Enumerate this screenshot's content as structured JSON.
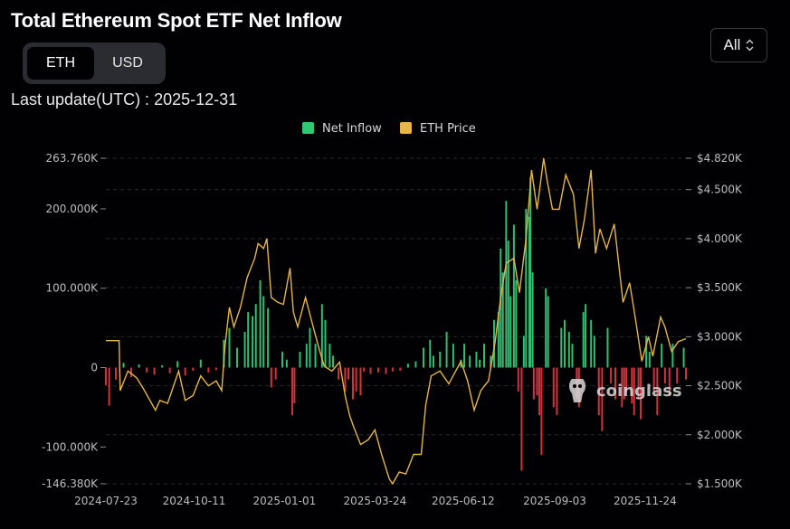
{
  "header": {
    "title": "Total Ethereum Spot ETF Net Inflow",
    "units": [
      "ETH",
      "USD"
    ],
    "active_unit": "ETH",
    "last_update": "Last update(UTC) : 2025-12-31",
    "range": "All"
  },
  "watermark": "coinglass",
  "colors": {
    "inflow_positive": "#2fbf71",
    "inflow_negative": "#d3323f",
    "price_line": "#e6b645",
    "legend_inflow": "#34c771",
    "legend_price": "#e6b645",
    "grid": "#2a2a2e"
  },
  "chart_data": {
    "type": "bar",
    "title": "",
    "legend": [
      {
        "name": "Net Inflow",
        "kind": "bar"
      },
      {
        "name": "ETH Price",
        "kind": "line"
      }
    ],
    "legend_placement": "top-center",
    "grid": true,
    "x_tick_labels": [
      "2024-07-23",
      "2024-10-11",
      "2025-01-01",
      "2025-03-24",
      "2025-06-12",
      "2025-09-03",
      "2025-11-24"
    ],
    "x_start": "2024-07-23",
    "x_end": "2025-12-31",
    "y_left": {
      "range": [
        -146380,
        263760
      ],
      "ticks": [
        263760,
        200000,
        100000,
        0,
        -100000,
        -146380
      ],
      "tick_labels": [
        "263.760K",
        "200.000K",
        "100.000K",
        "0",
        "-100.000K",
        "-146.380K"
      ]
    },
    "y_right": {
      "range": [
        1500,
        4820
      ],
      "ticks": [
        4820,
        4500,
        4000,
        3500,
        3000,
        2500,
        2000,
        1500
      ],
      "tick_labels": [
        "$4.820K",
        "$4.500K",
        "$4.000K",
        "$3.500K",
        "$3.000K",
        "$2.500K",
        "$2.000K",
        "$1.500K"
      ]
    },
    "series": [
      {
        "name": "Net Inflow",
        "axis": "left",
        "points": [
          [
            "2024-07-23",
            -22000
          ],
          [
            "2024-07-26",
            -48000
          ],
          [
            "2024-08-01",
            -15000
          ],
          [
            "2024-08-08",
            6000
          ],
          [
            "2024-08-15",
            -12000
          ],
          [
            "2024-08-22",
            4000
          ],
          [
            "2024-08-29",
            -6000
          ],
          [
            "2024-09-05",
            -9000
          ],
          [
            "2024-09-12",
            3000
          ],
          [
            "2024-09-19",
            -7000
          ],
          [
            "2024-09-26",
            8000
          ],
          [
            "2024-10-03",
            -10000
          ],
          [
            "2024-10-10",
            -4000
          ],
          [
            "2024-10-17",
            10000
          ],
          [
            "2024-10-24",
            -6000
          ],
          [
            "2024-10-31",
            -3000
          ],
          [
            "2024-11-07",
            35000
          ],
          [
            "2024-11-12",
            50000
          ],
          [
            "2024-11-19",
            25000
          ],
          [
            "2024-11-26",
            45000
          ],
          [
            "2024-11-29",
            70000
          ],
          [
            "2024-12-03",
            65000
          ],
          [
            "2024-12-06",
            80000
          ],
          [
            "2024-12-10",
            110000
          ],
          [
            "2024-12-13",
            90000
          ],
          [
            "2024-12-17",
            75000
          ],
          [
            "2024-12-20",
            -25000
          ],
          [
            "2024-12-24",
            -15000
          ],
          [
            "2024-12-30",
            20000
          ],
          [
            "2025-01-03",
            10000
          ],
          [
            "2025-01-08",
            -60000
          ],
          [
            "2025-01-10",
            -45000
          ],
          [
            "2025-01-15",
            20000
          ],
          [
            "2025-01-21",
            30000
          ],
          [
            "2025-01-24",
            50000
          ],
          [
            "2025-01-29",
            30000
          ],
          [
            "2025-02-04",
            80000
          ],
          [
            "2025-02-07",
            60000
          ],
          [
            "2025-02-11",
            30000
          ],
          [
            "2025-02-14",
            15000
          ],
          [
            "2025-02-19",
            -15000
          ],
          [
            "2025-02-25",
            -30000
          ],
          [
            "2025-02-28",
            -15000
          ],
          [
            "2025-03-04",
            -40000
          ],
          [
            "2025-03-07",
            -30000
          ],
          [
            "2025-03-11",
            -35000
          ],
          [
            "2025-03-14",
            -5000
          ],
          [
            "2025-03-20",
            -8000
          ],
          [
            "2025-03-27",
            -6000
          ],
          [
            "2025-04-03",
            -8000
          ],
          [
            "2025-04-09",
            -5000
          ],
          [
            "2025-04-16",
            -4000
          ],
          [
            "2025-04-23",
            5000
          ],
          [
            "2025-04-30",
            8000
          ],
          [
            "2025-05-07",
            25000
          ],
          [
            "2025-05-13",
            35000
          ],
          [
            "2025-05-16",
            15000
          ],
          [
            "2025-05-22",
            20000
          ],
          [
            "2025-05-28",
            45000
          ],
          [
            "2025-06-03",
            30000
          ],
          [
            "2025-06-10",
            10000
          ],
          [
            "2025-06-13",
            30000
          ],
          [
            "2025-06-18",
            15000
          ],
          [
            "2025-06-24",
            20000
          ],
          [
            "2025-06-27",
            10000
          ],
          [
            "2025-07-01",
            30000
          ],
          [
            "2025-07-07",
            15000
          ],
          [
            "2025-07-10",
            60000
          ],
          [
            "2025-07-14",
            70000
          ],
          [
            "2025-07-16",
            150000
          ],
          [
            "2025-07-18",
            120000
          ],
          [
            "2025-07-21",
            210000
          ],
          [
            "2025-07-23",
            160000
          ],
          [
            "2025-07-25",
            90000
          ],
          [
            "2025-07-28",
            180000
          ],
          [
            "2025-07-30",
            110000
          ],
          [
            "2025-08-01",
            -30000
          ],
          [
            "2025-08-04",
            -130000
          ],
          [
            "2025-08-06",
            40000
          ],
          [
            "2025-08-08",
            200000
          ],
          [
            "2025-08-11",
            190000
          ],
          [
            "2025-08-12",
            240000
          ],
          [
            "2025-08-14",
            120000
          ],
          [
            "2025-08-15",
            -40000
          ],
          [
            "2025-08-18",
            -35000
          ],
          [
            "2025-08-20",
            -60000
          ],
          [
            "2025-08-22",
            -110000
          ],
          [
            "2025-08-26",
            100000
          ],
          [
            "2025-08-28",
            90000
          ],
          [
            "2025-09-02",
            -50000
          ],
          [
            "2025-09-05",
            -60000
          ],
          [
            "2025-09-09",
            50000
          ],
          [
            "2025-09-12",
            60000
          ],
          [
            "2025-09-16",
            45000
          ],
          [
            "2025-09-19",
            30000
          ],
          [
            "2025-09-23",
            -40000
          ],
          [
            "2025-09-25",
            -50000
          ],
          [
            "2025-09-29",
            70000
          ],
          [
            "2025-10-01",
            80000
          ],
          [
            "2025-10-06",
            60000
          ],
          [
            "2025-10-09",
            40000
          ],
          [
            "2025-10-13",
            -60000
          ],
          [
            "2025-10-16",
            -80000
          ],
          [
            "2025-10-21",
            50000
          ],
          [
            "2025-10-24",
            -20000
          ],
          [
            "2025-10-28",
            -40000
          ],
          [
            "2025-11-03",
            -50000
          ],
          [
            "2025-11-05",
            -40000
          ],
          [
            "2025-11-07",
            -30000
          ],
          [
            "2025-11-12",
            -45000
          ],
          [
            "2025-11-14",
            -60000
          ],
          [
            "2025-11-18",
            -40000
          ],
          [
            "2025-11-20",
            -65000
          ],
          [
            "2025-11-25",
            40000
          ],
          [
            "2025-11-28",
            20000
          ],
          [
            "2025-12-02",
            -30000
          ],
          [
            "2025-12-05",
            -60000
          ],
          [
            "2025-12-09",
            30000
          ],
          [
            "2025-12-12",
            -20000
          ],
          [
            "2025-12-16",
            -35000
          ],
          [
            "2025-12-19",
            30000
          ],
          [
            "2025-12-23",
            -20000
          ],
          [
            "2025-12-29",
            25000
          ],
          [
            "2025-12-31",
            -15000
          ]
        ]
      },
      {
        "name": "ETH Price",
        "axis": "right",
        "points": [
          [
            "2024-07-23",
            2960
          ],
          [
            "2024-08-04",
            2960
          ],
          [
            "2024-08-05",
            2450
          ],
          [
            "2024-08-12",
            2650
          ],
          [
            "2024-08-20",
            2580
          ],
          [
            "2024-08-27",
            2450
          ],
          [
            "2024-09-06",
            2250
          ],
          [
            "2024-09-10",
            2350
          ],
          [
            "2024-09-17",
            2320
          ],
          [
            "2024-09-27",
            2650
          ],
          [
            "2024-10-03",
            2350
          ],
          [
            "2024-10-10",
            2400
          ],
          [
            "2024-10-17",
            2600
          ],
          [
            "2024-10-24",
            2500
          ],
          [
            "2024-10-31",
            2550
          ],
          [
            "2024-11-05",
            2450
          ],
          [
            "2024-11-08",
            2900
          ],
          [
            "2024-11-12",
            3300
          ],
          [
            "2024-11-16",
            3100
          ],
          [
            "2024-11-22",
            3300
          ],
          [
            "2024-11-28",
            3600
          ],
          [
            "2024-12-05",
            3800
          ],
          [
            "2024-12-08",
            3950
          ],
          [
            "2024-12-13",
            3900
          ],
          [
            "2024-12-16",
            4000
          ],
          [
            "2024-12-20",
            3400
          ],
          [
            "2024-12-26",
            3350
          ],
          [
            "2024-12-31",
            3330
          ],
          [
            "2025-01-06",
            3700
          ],
          [
            "2025-01-09",
            3250
          ],
          [
            "2025-01-13",
            3100
          ],
          [
            "2025-01-20",
            3400
          ],
          [
            "2025-01-27",
            3100
          ],
          [
            "2025-02-02",
            2850
          ],
          [
            "2025-02-06",
            2700
          ],
          [
            "2025-02-13",
            2650
          ],
          [
            "2025-02-20",
            2740
          ],
          [
            "2025-02-25",
            2400
          ],
          [
            "2025-03-01",
            2200
          ],
          [
            "2025-03-04",
            2100
          ],
          [
            "2025-03-11",
            1900
          ],
          [
            "2025-03-18",
            1950
          ],
          [
            "2025-03-24",
            2050
          ],
          [
            "2025-03-30",
            1800
          ],
          [
            "2025-04-06",
            1550
          ],
          [
            "2025-04-09",
            1500
          ],
          [
            "2025-04-15",
            1620
          ],
          [
            "2025-04-21",
            1600
          ],
          [
            "2025-04-28",
            1800
          ],
          [
            "2025-05-05",
            1800
          ],
          [
            "2025-05-09",
            2300
          ],
          [
            "2025-05-14",
            2600
          ],
          [
            "2025-05-22",
            2650
          ],
          [
            "2025-05-30",
            2520
          ],
          [
            "2025-06-10",
            2750
          ],
          [
            "2025-06-16",
            2550
          ],
          [
            "2025-06-22",
            2250
          ],
          [
            "2025-06-28",
            2450
          ],
          [
            "2025-07-05",
            2550
          ],
          [
            "2025-07-11",
            2950
          ],
          [
            "2025-07-16",
            3400
          ],
          [
            "2025-07-21",
            3750
          ],
          [
            "2025-07-28",
            3800
          ],
          [
            "2025-08-02",
            3450
          ],
          [
            "2025-08-08",
            4000
          ],
          [
            "2025-08-13",
            4700
          ],
          [
            "2025-08-18",
            4300
          ],
          [
            "2025-08-24",
            4820
          ],
          [
            "2025-08-27",
            4600
          ],
          [
            "2025-09-01",
            4300
          ],
          [
            "2025-09-07",
            4300
          ],
          [
            "2025-09-13",
            4650
          ],
          [
            "2025-09-20",
            4450
          ],
          [
            "2025-09-25",
            3900
          ],
          [
            "2025-09-30",
            4200
          ],
          [
            "2025-10-06",
            4700
          ],
          [
            "2025-10-10",
            3850
          ],
          [
            "2025-10-14",
            4100
          ],
          [
            "2025-10-20",
            3900
          ],
          [
            "2025-10-27",
            4150
          ],
          [
            "2025-11-04",
            3350
          ],
          [
            "2025-11-10",
            3550
          ],
          [
            "2025-11-15",
            3200
          ],
          [
            "2025-11-21",
            2750
          ],
          [
            "2025-11-27",
            3000
          ],
          [
            "2025-12-01",
            2800
          ],
          [
            "2025-12-08",
            3200
          ],
          [
            "2025-12-12",
            3100
          ],
          [
            "2025-12-18",
            2850
          ],
          [
            "2025-12-24",
            2950
          ],
          [
            "2025-12-31",
            2980
          ]
        ]
      }
    ]
  }
}
